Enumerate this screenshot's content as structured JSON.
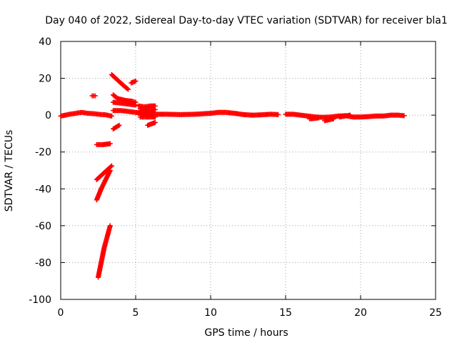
{
  "chart_data": {
    "type": "scatter",
    "title": "Day 040 of 2022, Sidereal Day-to-day VTEC variation (SDTVAR) for receiver bla1",
    "xlabel": "GPS time / hours",
    "ylabel": "SDTVAR / TECUs",
    "xlim": [
      0,
      25
    ],
    "ylim": [
      -100,
      40
    ],
    "xticks": [
      "0",
      "5",
      "10",
      "15",
      "20",
      "25"
    ],
    "yticks": [
      "40",
      "20",
      "0",
      "-20",
      "-40",
      "-60",
      "-80",
      "-100"
    ],
    "grid": true,
    "marker": "plus",
    "color": "#ff0000",
    "series": [
      {
        "segments": [
          [
            [
              0.0,
              -0.5
            ],
            [
              0.3,
              0.0
            ],
            [
              0.6,
              0.5
            ],
            [
              1.0,
              1.0
            ],
            [
              1.4,
              1.5
            ],
            [
              1.8,
              1.0
            ],
            [
              2.2,
              0.8
            ],
            [
              2.6,
              0.4
            ],
            [
              3.0,
              0.2
            ],
            [
              3.4,
              -0.5
            ]
          ],
          [
            [
              2.1,
              10.5
            ],
            [
              2.3,
              10.5
            ]
          ],
          [
            [
              2.4,
              -16.0
            ],
            [
              2.8,
              -16.0
            ],
            [
              3.3,
              -15.5
            ]
          ],
          [
            [
              2.4,
              -35.0
            ],
            [
              2.8,
              -32.0
            ],
            [
              3.2,
              -29.0
            ],
            [
              3.4,
              -27.5
            ]
          ],
          [
            [
              2.4,
              -46.0
            ],
            [
              2.7,
              -40.0
            ],
            [
              3.0,
              -35.0
            ],
            [
              3.3,
              -30.0
            ]
          ],
          [
            [
              2.5,
              -88.0
            ],
            [
              2.7,
              -80.0
            ],
            [
              2.9,
              -72.0
            ],
            [
              3.1,
              -66.0
            ],
            [
              3.3,
              -60.0
            ]
          ],
          [
            [
              3.5,
              -7.5
            ],
            [
              3.9,
              -5.5
            ]
          ],
          [
            [
              3.4,
              22.0
            ],
            [
              3.8,
              19.0
            ],
            [
              4.2,
              16.0
            ],
            [
              4.5,
              14.0
            ]
          ],
          [
            [
              4.7,
              17.5
            ],
            [
              5.0,
              18.5
            ]
          ],
          [
            [
              3.5,
              11.0
            ],
            [
              3.8,
              9.0
            ],
            [
              4.3,
              8.0
            ],
            [
              4.8,
              7.5
            ],
            [
              5.0,
              7.0
            ]
          ],
          [
            [
              3.5,
              7.0
            ],
            [
              4.0,
              6.5
            ],
            [
              4.5,
              6.0
            ],
            [
              5.0,
              5.5
            ]
          ],
          [
            [
              3.5,
              2.5
            ],
            [
              4.0,
              2.5
            ],
            [
              4.5,
              2.0
            ],
            [
              5.0,
              1.5
            ],
            [
              5.5,
              1.0
            ]
          ],
          [
            [
              5.2,
              5.0
            ],
            [
              5.6,
              4.5
            ],
            [
              6.0,
              5.0
            ],
            [
              6.3,
              5.0
            ]
          ],
          [
            [
              5.3,
              3.5
            ],
            [
              5.7,
              3.0
            ],
            [
              6.3,
              3.0
            ]
          ],
          [
            [
              5.3,
              -1.0
            ],
            [
              5.7,
              -1.0
            ],
            [
              6.3,
              -1.0
            ]
          ],
          [
            [
              5.3,
              0.0
            ],
            [
              6.3,
              0.0
            ]
          ],
          [
            [
              5.2,
              1.5
            ],
            [
              6.3,
              1.5
            ]
          ],
          [
            [
              5.8,
              -5.5
            ],
            [
              6.3,
              -4.0
            ]
          ],
          [
            [
              6.4,
              0.5
            ],
            [
              7.0,
              0.5
            ],
            [
              8.0,
              0.3
            ],
            [
              9.0,
              0.5
            ],
            [
              10.0,
              1.0
            ],
            [
              10.5,
              1.5
            ],
            [
              11.0,
              1.5
            ],
            [
              11.6,
              1.0
            ],
            [
              12.2,
              0.3
            ],
            [
              12.8,
              0.0
            ],
            [
              13.4,
              0.2
            ],
            [
              14.0,
              0.5
            ],
            [
              14.5,
              0.3
            ]
          ],
          [
            [
              15.0,
              0.5
            ],
            [
              15.5,
              0.5
            ],
            [
              16.0,
              0.0
            ],
            [
              16.5,
              -0.5
            ],
            [
              17.0,
              -1.0
            ],
            [
              17.5,
              -1.2
            ],
            [
              18.0,
              -1.0
            ],
            [
              18.5,
              -0.5
            ],
            [
              19.0,
              -0.3
            ],
            [
              19.5,
              -1.0
            ],
            [
              20.0,
              -1.0
            ],
            [
              20.5,
              -0.8
            ],
            [
              21.0,
              -0.5
            ],
            [
              21.5,
              -0.5
            ],
            [
              22.0,
              0.0
            ],
            [
              22.5,
              0.0
            ],
            [
              22.9,
              -0.3
            ]
          ],
          [
            [
              16.6,
              -2.0
            ],
            [
              17.2,
              -1.5
            ]
          ],
          [
            [
              17.6,
              -3.0
            ],
            [
              18.2,
              -2.0
            ]
          ],
          [
            [
              18.6,
              -1.0
            ],
            [
              19.3,
              0.0
            ]
          ]
        ]
      }
    ]
  }
}
